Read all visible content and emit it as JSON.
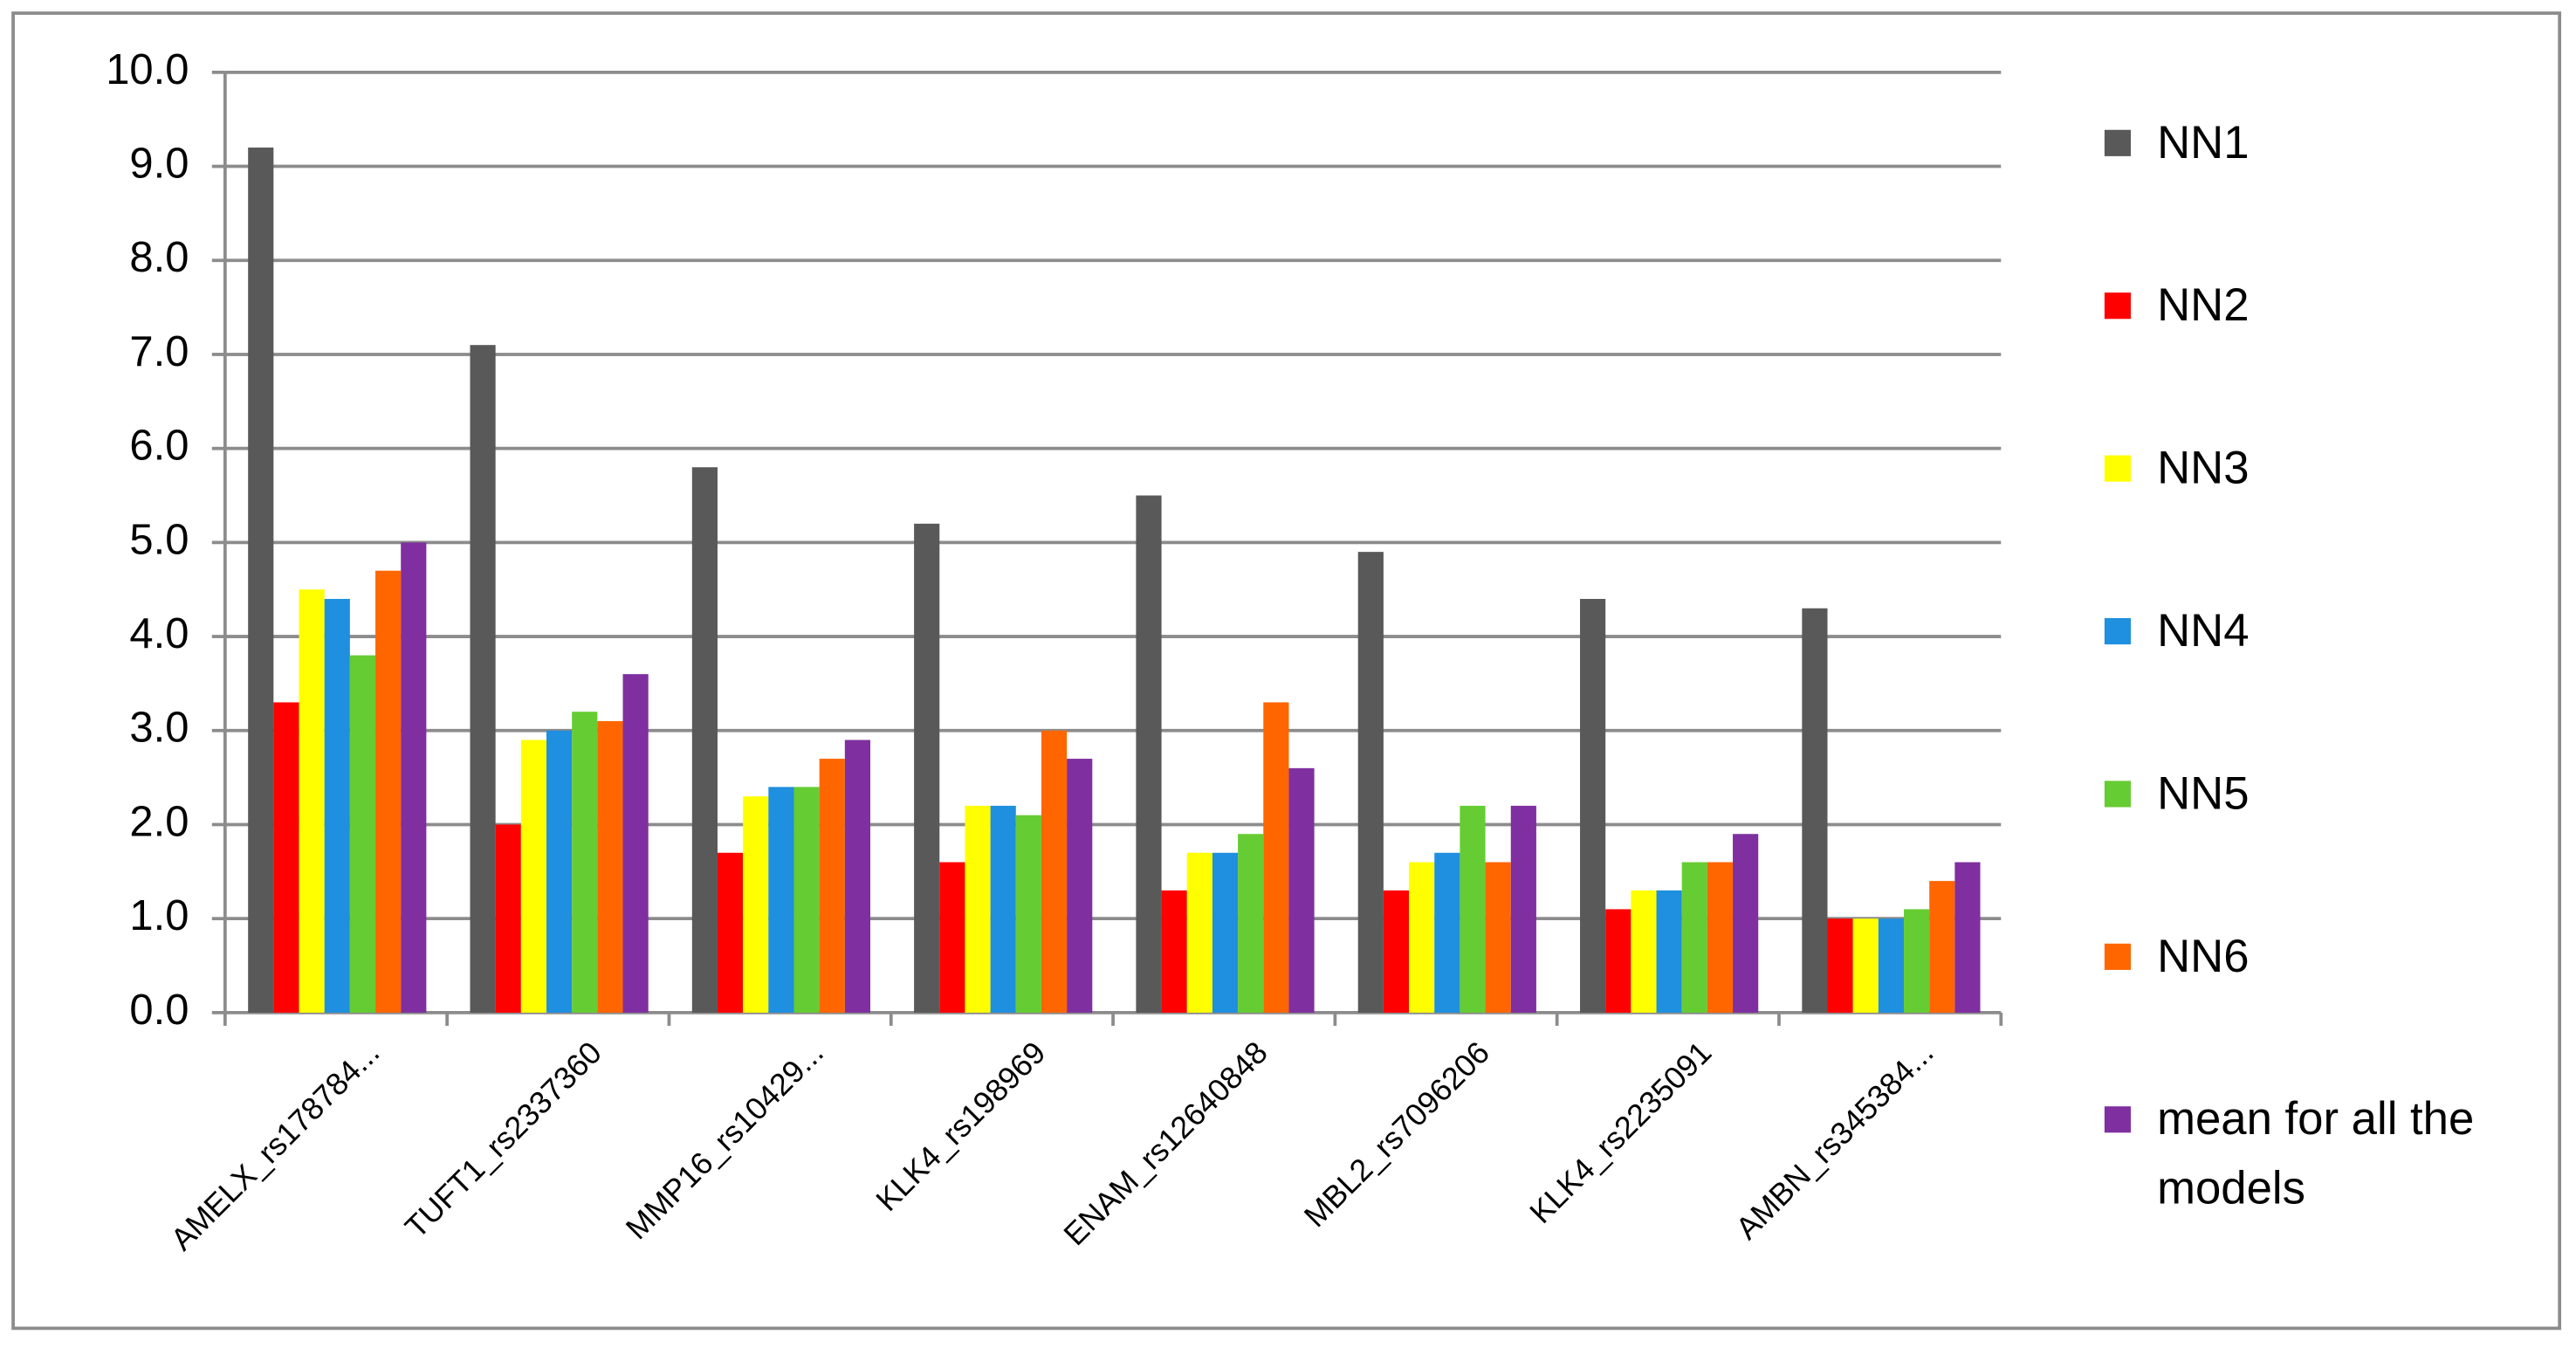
{
  "chart_data": {
    "type": "bar",
    "categories": [
      "AMELX_rs178784...",
      "TUFT1_rs2337360",
      "MMP16_rs10429...",
      "KLK4_rs198969",
      "ENAM_rs12640848",
      "MBL2_rs7096206",
      "KLK4_rs2235091",
      "AMBN_rs345384..."
    ],
    "series": [
      {
        "name": "NN1",
        "color": "#595959",
        "values": [
          9.2,
          7.1,
          5.8,
          5.2,
          5.5,
          4.9,
          4.4,
          4.3
        ]
      },
      {
        "name": "NN2",
        "color": "#ff0000",
        "values": [
          3.3,
          2.0,
          1.7,
          1.6,
          1.3,
          1.3,
          1.1,
          1.0
        ]
      },
      {
        "name": "NN3",
        "color": "#ffff00",
        "values": [
          4.5,
          2.9,
          2.3,
          2.2,
          1.7,
          1.6,
          1.3,
          1.0
        ]
      },
      {
        "name": "NN4",
        "color": "#1f8fdf",
        "values": [
          4.4,
          3.0,
          2.4,
          2.2,
          1.7,
          1.7,
          1.3,
          1.0
        ]
      },
      {
        "name": "NN5",
        "color": "#66cc33",
        "values": [
          3.8,
          3.2,
          2.4,
          2.1,
          1.9,
          2.2,
          1.6,
          1.1
        ]
      },
      {
        "name": "NN6",
        "color": "#ff6600",
        "values": [
          4.7,
          3.1,
          2.7,
          3.0,
          3.3,
          1.6,
          1.6,
          1.4
        ]
      },
      {
        "name": "mean for all the models",
        "color": "#7f2fa0",
        "values": [
          5.0,
          3.6,
          2.9,
          2.7,
          2.6,
          2.2,
          1.9,
          1.6
        ]
      }
    ],
    "ylim": [
      0,
      10
    ],
    "yticks": [
      {
        "value": 0,
        "label": "0.0"
      },
      {
        "value": 1,
        "label": "1.0"
      },
      {
        "value": 2,
        "label": "2.0"
      },
      {
        "value": 3,
        "label": "3.0"
      },
      {
        "value": 4,
        "label": "4.0"
      },
      {
        "value": 5,
        "label": "5.0"
      },
      {
        "value": 6,
        "label": "6.0"
      },
      {
        "value": 7,
        "label": "7.0"
      },
      {
        "value": 8,
        "label": "8.0"
      },
      {
        "value": 9,
        "label": "9.0"
      },
      {
        "value": 10,
        "label": "10.0"
      }
    ],
    "grid": true,
    "legend": "right"
  }
}
